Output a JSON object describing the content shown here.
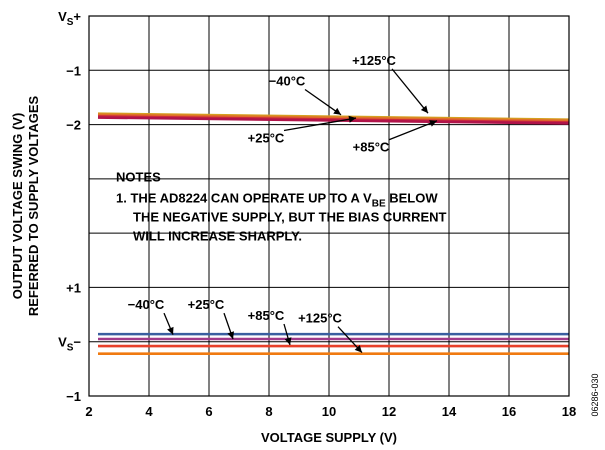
{
  "chart_data": {
    "type": "line",
    "xlabel": "VOLTAGE SUPPLY (V)",
    "ylabel_lines": [
      "OUTPUT VOLTAGE SWING (V)",
      "REFERRED TO SUPPLY VOLTAGES"
    ],
    "xlim": [
      2,
      18
    ],
    "x_ticks": [
      "2",
      "4",
      "6",
      "8",
      "10",
      "12",
      "14",
      "16",
      "18"
    ],
    "x_tick_values": [
      2,
      4,
      6,
      8,
      10,
      12,
      14,
      16,
      18
    ],
    "y_ticks": [
      {
        "base": "V",
        "sub": "S",
        "suffix": "+",
        "pos": 0
      },
      {
        "base": "−1",
        "sub": "",
        "suffix": "",
        "pos": 1
      },
      {
        "base": "−2",
        "sub": "",
        "suffix": "",
        "pos": 2
      },
      {
        "base": "+1",
        "sub": "",
        "suffix": "",
        "pos": 5
      },
      {
        "base": "V",
        "sub": "S",
        "suffix": "−",
        "pos": 6
      },
      {
        "base": "−1",
        "sub": "",
        "suffix": "",
        "pos": 7
      }
    ],
    "grid": true,
    "upper_group": {
      "reference": "VS+",
      "series": [
        {
          "name": "−40°C",
          "color": "#d4a020",
          "x": [
            2.3,
            18
          ],
          "y": [
            -1.8,
            -1.91
          ]
        },
        {
          "name": "+25°C",
          "color": "#e0702a",
          "x": [
            2.3,
            18
          ],
          "y": [
            -1.82,
            -1.93
          ]
        },
        {
          "name": "+85°C",
          "color": "#cc2a3a",
          "x": [
            2.3,
            18
          ],
          "y": [
            -1.85,
            -1.96
          ]
        },
        {
          "name": "+125°C",
          "color": "#b0144a",
          "x": [
            2.3,
            18
          ],
          "y": [
            -1.87,
            -1.98
          ]
        }
      ]
    },
    "lower_group": {
      "reference": "VS−",
      "series": [
        {
          "name": "−40°C",
          "color": "#3a5fa0",
          "x": [
            2.3,
            18
          ],
          "y": [
            0.14,
            0.14
          ]
        },
        {
          "name": "+25°C",
          "color": "#a03a8a",
          "x": [
            2.3,
            18
          ],
          "y": [
            0.05,
            0.05
          ]
        },
        {
          "name": "+85°C",
          "color": "#e8402a",
          "x": [
            2.3,
            18
          ],
          "y": [
            -0.08,
            -0.08
          ]
        },
        {
          "name": "+125°C",
          "color": "#f07a10",
          "x": [
            2.3,
            18
          ],
          "y": [
            -0.22,
            -0.22
          ]
        }
      ]
    },
    "annotations": {
      "upper": [
        {
          "text": "−40°C",
          "tx": 8.6,
          "tpos": 1.28,
          "ax": 10.4,
          "apos": 1.82
        },
        {
          "text": "+125°C",
          "tx": 11.5,
          "tpos": 0.9,
          "ax": 13.3,
          "apos": 1.79
        },
        {
          "text": "+25°C",
          "tx": 7.9,
          "tpos": 2.33,
          "ax": 10.9,
          "apos": 1.88
        },
        {
          "text": "+85°C",
          "tx": 11.4,
          "tpos": 2.5,
          "ax": 13.6,
          "apos": 1.93
        }
      ],
      "lower": [
        {
          "text": "−40°C",
          "tx": 3.9,
          "tpos": 5.4,
          "ax": 4.8,
          "apos": 5.87
        },
        {
          "text": "+25°C",
          "tx": 5.9,
          "tpos": 5.4,
          "ax": 6.8,
          "apos": 5.95
        },
        {
          "text": "+85°C",
          "tx": 7.9,
          "tpos": 5.6,
          "ax": 8.7,
          "apos": 6.06
        },
        {
          "text": "+125°C",
          "tx": 9.7,
          "tpos": 5.65,
          "ax": 11.1,
          "apos": 6.2
        }
      ]
    },
    "notes": {
      "heading": "NOTES",
      "line1_pre": "1. THE AD8224 CAN OPERATE UP TO A V",
      "line1_sub": "BE",
      "line1_post": " BELOW",
      "line2": "THE NEGATIVE SUPPLY, BUT THE BIAS CURRENT",
      "line3": "WILL INCREASE SHARPLY."
    },
    "figure_id": "06286-030"
  }
}
